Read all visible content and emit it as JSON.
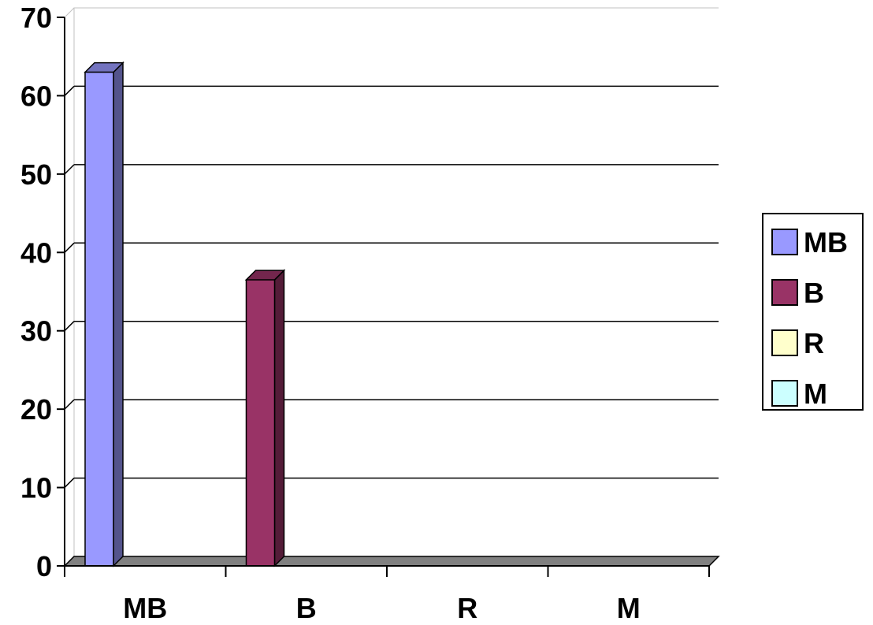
{
  "chart_data": {
    "type": "bar",
    "style": "3d",
    "categories": [
      "MB",
      "B",
      "R",
      "M"
    ],
    "series": [
      {
        "name": "MB",
        "values": [
          63,
          0,
          0,
          0
        ],
        "color": "#9999FF"
      },
      {
        "name": "B",
        "values": [
          0,
          36.5,
          0,
          0
        ],
        "color": "#993366"
      },
      {
        "name": "R",
        "values": [
          0,
          0,
          0,
          0
        ],
        "color": "#FFFFCC"
      },
      {
        "name": "M",
        "values": [
          0,
          0,
          0,
          0
        ],
        "color": "#CCFFFF"
      }
    ],
    "y_ticks": [
      "0",
      "10",
      "20",
      "30",
      "40",
      "50",
      "60",
      "70"
    ],
    "ylim": [
      0,
      70
    ],
    "grid": true,
    "legend_position": "right",
    "colors": {
      "grid": "#000000",
      "floor": "#808080",
      "background": "#FFFFFF"
    }
  }
}
